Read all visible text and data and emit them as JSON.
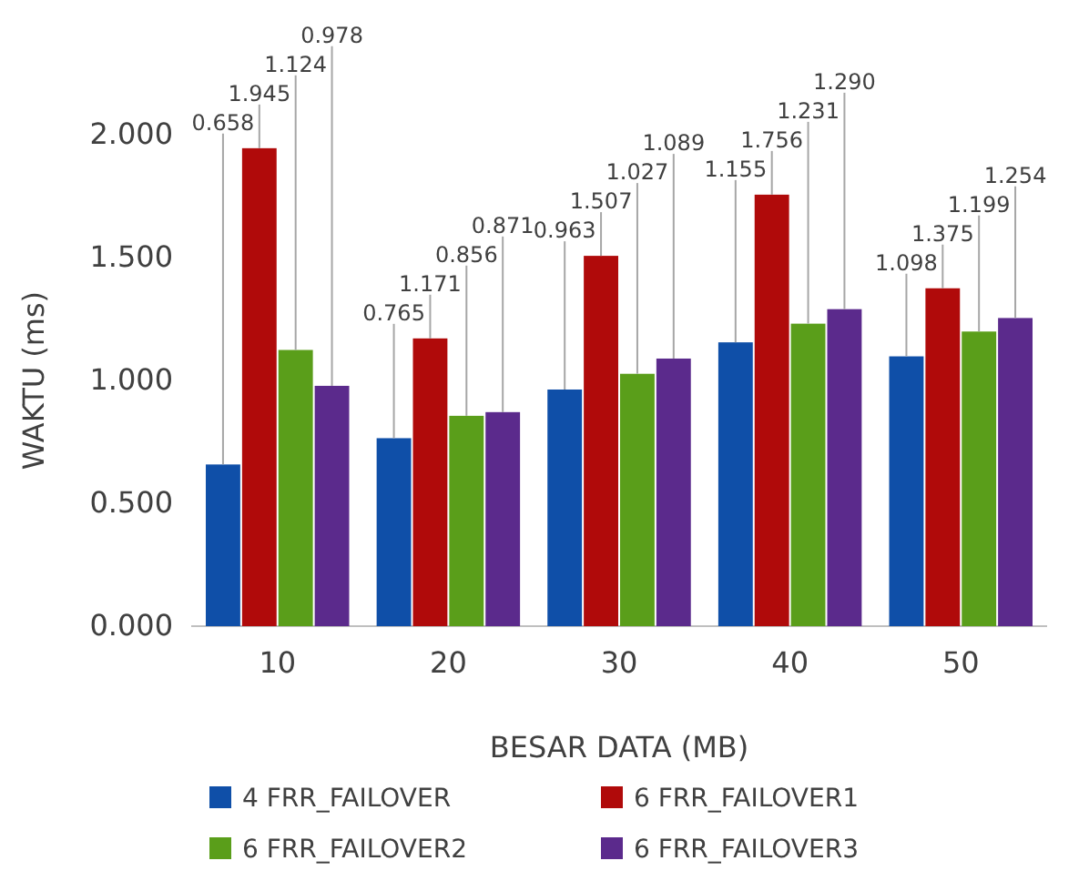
{
  "chart_data": {
    "type": "bar",
    "xlabel": "BESAR DATA (MB)",
    "ylabel": "WAKTU (ms)",
    "categories": [
      "10",
      "20",
      "30",
      "40",
      "50"
    ],
    "ylim": [
      0,
      2
    ],
    "yticks": [
      {
        "value": 0,
        "label": "0.000"
      },
      {
        "value": 0.5,
        "label": "0.500"
      },
      {
        "value": 1,
        "label": "1.000"
      },
      {
        "value": 1.5,
        "label": "1.500"
      },
      {
        "value": 2,
        "label": "2.000"
      }
    ],
    "grid": false,
    "legend": "bottom",
    "series": [
      {
        "name": "4 FRR_FAILOVER",
        "color": "#0f4fa8",
        "values": [
          0.658,
          0.765,
          0.963,
          1.155,
          1.098
        ],
        "value_labels": [
          "0.658",
          "0.765",
          "0.963",
          "1.155",
          "1.098"
        ]
      },
      {
        "name": "6 FRR_FAILOVER1",
        "color": "#b00a0a",
        "values": [
          1.945,
          1.171,
          1.507,
          1.756,
          1.375
        ],
        "value_labels": [
          "1.945",
          "1.171",
          "1.507",
          "1.756",
          "1.375"
        ]
      },
      {
        "name": "6 FRR_FAILOVER2",
        "color": "#5a9e1a",
        "values": [
          1.124,
          0.856,
          1.027,
          1.231,
          1.199
        ],
        "value_labels": [
          "1.124",
          "0.856",
          "1.027",
          "1.231",
          "1.199"
        ]
      },
      {
        "name": "6 FRR_FAILOVER3",
        "color": "#5b2a8c",
        "values": [
          0.978,
          0.871,
          1.089,
          1.29,
          1.254
        ],
        "value_labels": [
          "0.978",
          "0.871",
          "1.089",
          "1.290",
          "1.254"
        ]
      }
    ]
  }
}
